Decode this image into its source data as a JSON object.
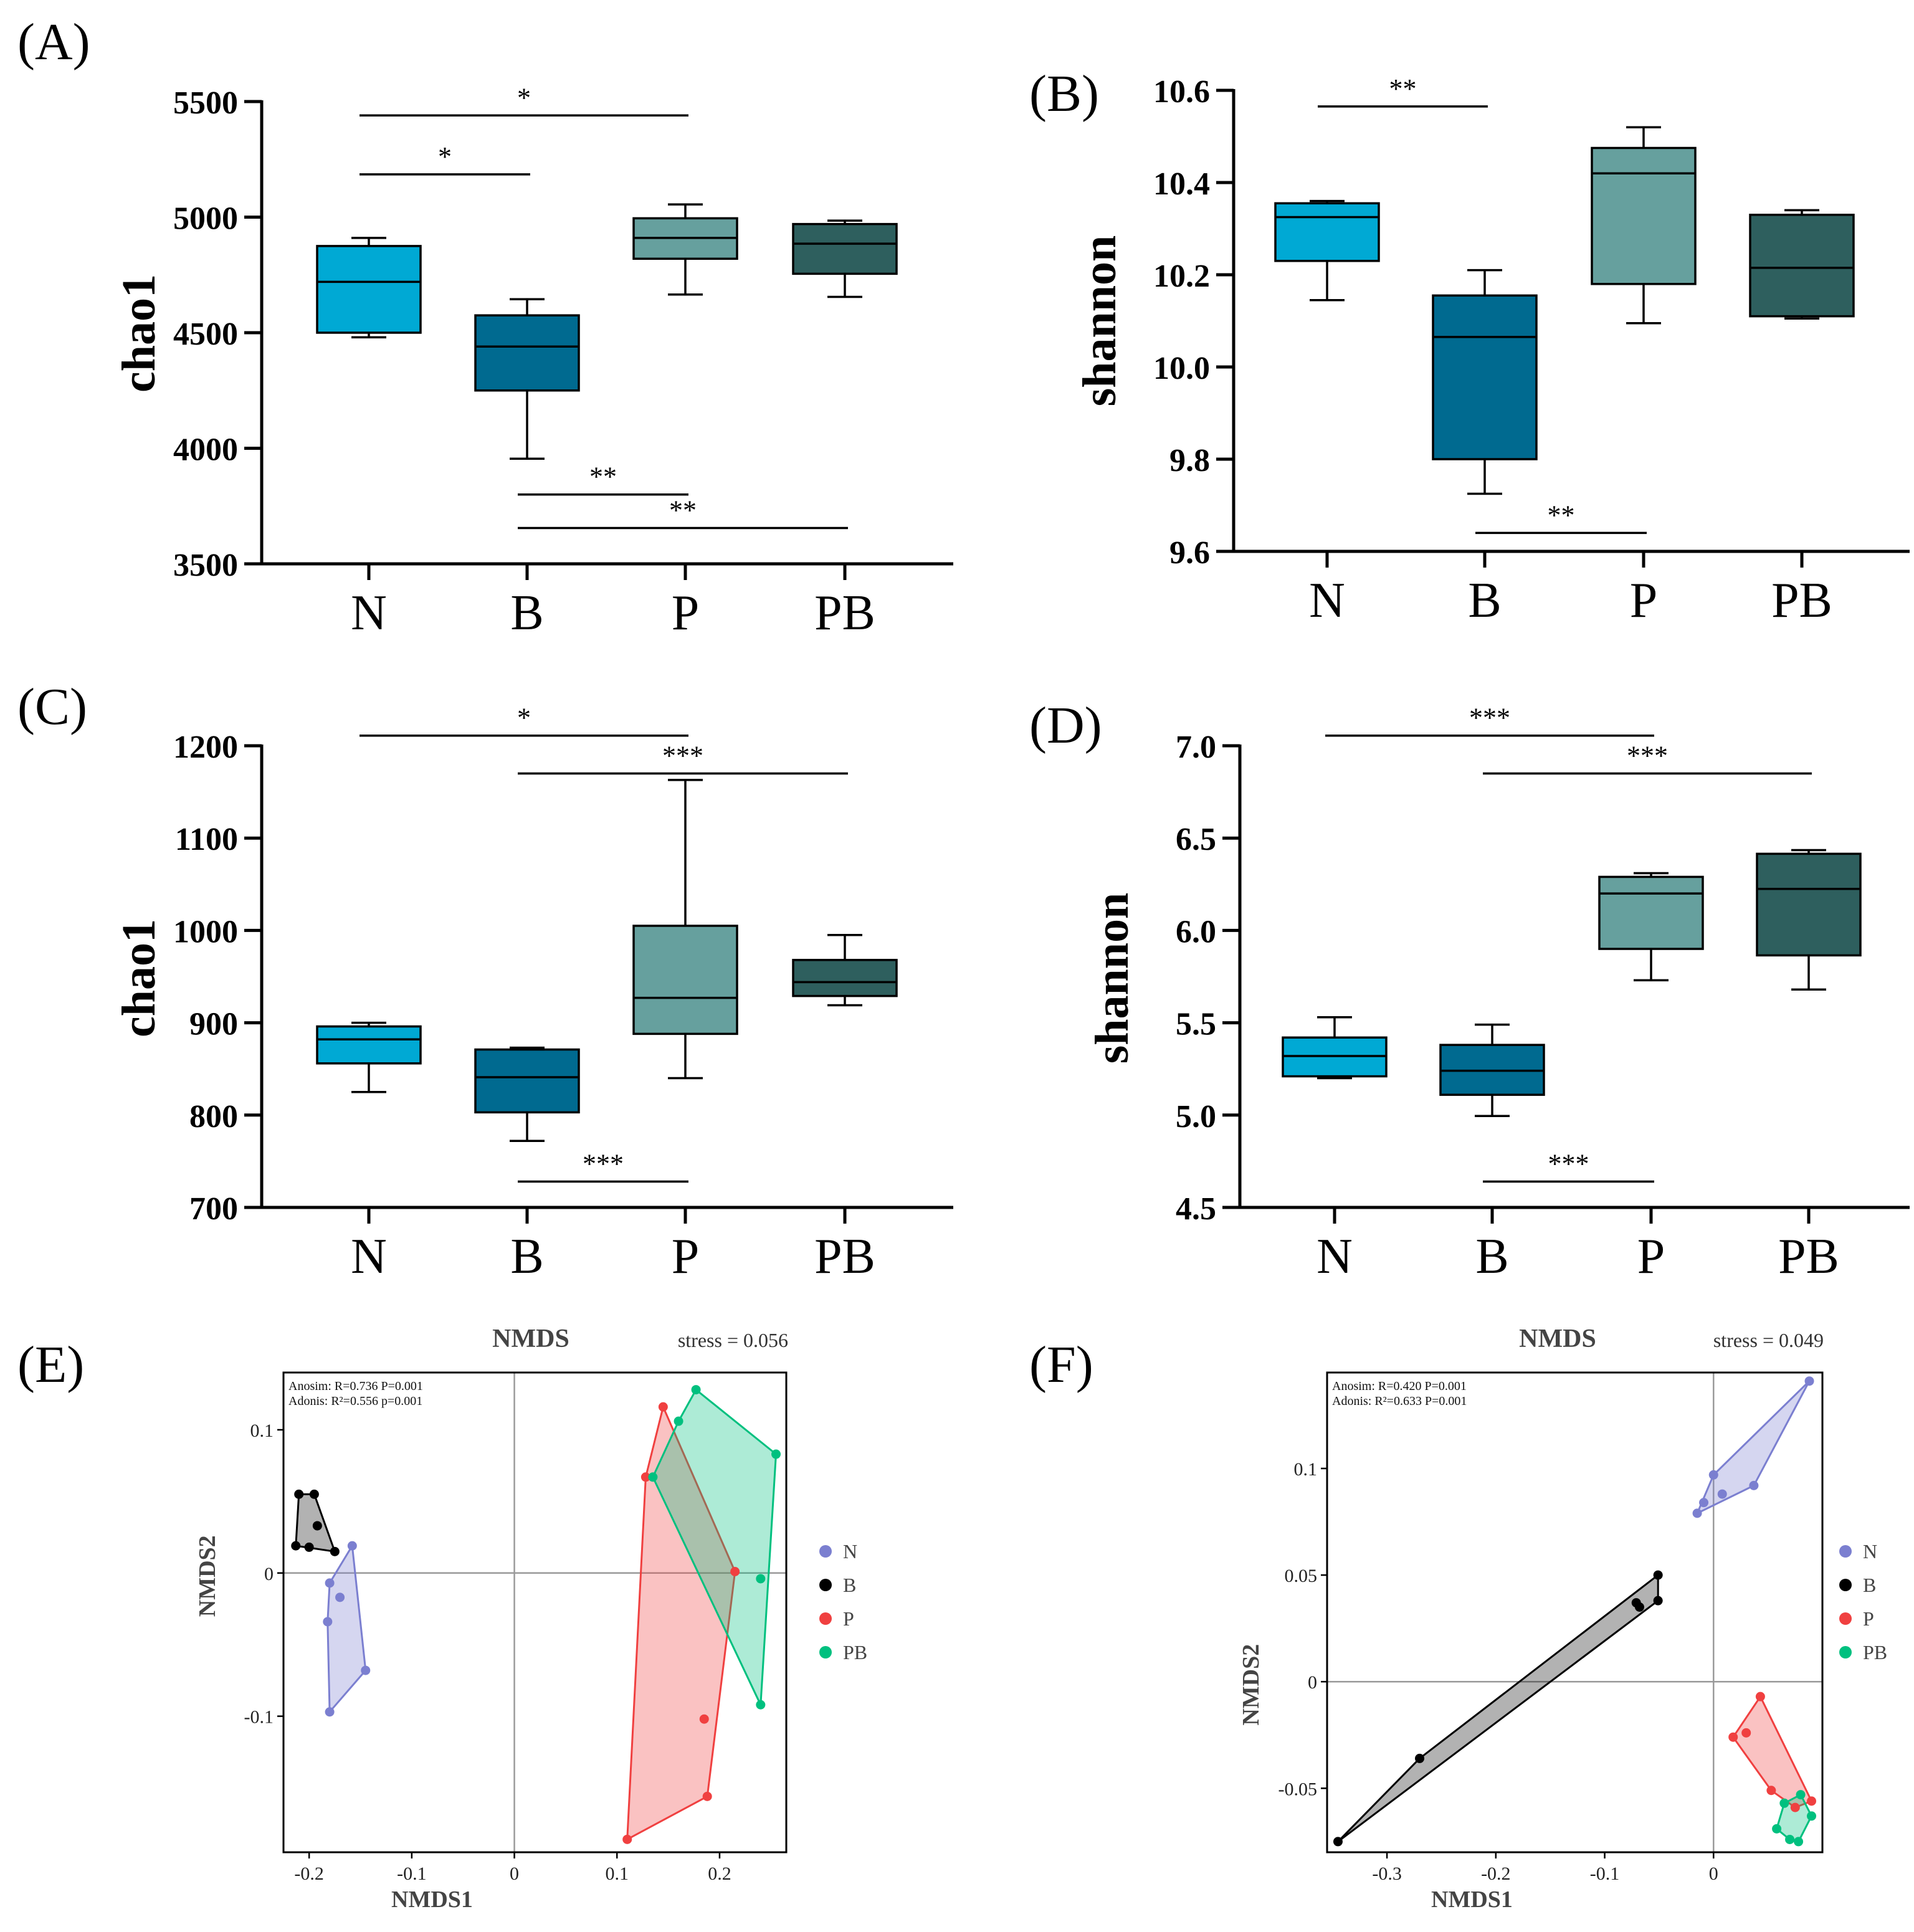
{
  "figure": {
    "colors": {
      "N": "#00A9D4",
      "B": "#006A90",
      "P": "#66A09E",
      "PB": "#2E5F5E"
    },
    "box_plot_categories": [
      "N",
      "B",
      "P",
      "PB"
    ]
  },
  "chart_data": [
    {
      "id": "A",
      "type": "box",
      "panel_label": "(A)",
      "ylabel": "chao1",
      "ylim": [
        3500,
        5500
      ],
      "yticks": [
        3500,
        4000,
        4500,
        5000,
        5500
      ],
      "categories": [
        "N",
        "B",
        "P",
        "PB"
      ],
      "boxes": [
        {
          "group": "N",
          "min": 4480,
          "q1": 4500,
          "median": 4720,
          "q3": 4875,
          "max": 4910
        },
        {
          "group": "B",
          "min": 3955,
          "q1": 4250,
          "median": 4440,
          "q3": 4575,
          "max": 4645
        },
        {
          "group": "P",
          "min": 4665,
          "q1": 4820,
          "median": 4910,
          "q3": 4995,
          "max": 5055
        },
        {
          "group": "PB",
          "min": 4655,
          "q1": 4755,
          "median": 4885,
          "q3": 4970,
          "max": 4985
        }
      ],
      "significance": [
        {
          "from": "N",
          "to": "P",
          "label": "*",
          "y": 5440
        },
        {
          "from": "N",
          "to": "B",
          "label": "*",
          "y": 5185
        },
        {
          "from": "B",
          "to": "P",
          "label": "**",
          "y": 3800
        },
        {
          "from": "B",
          "to": "PB",
          "label": "**",
          "y": 3655
        }
      ]
    },
    {
      "id": "B",
      "type": "box",
      "panel_label": "(B)",
      "ylabel": "shannon",
      "ylim": [
        9.6,
        10.6
      ],
      "yticks": [
        "9.6",
        "9.8",
        "10.0",
        "10.2",
        "10.4",
        "10.6"
      ],
      "categories": [
        "N",
        "B",
        "P",
        "PB"
      ],
      "boxes": [
        {
          "group": "N",
          "min": 10.145,
          "q1": 10.23,
          "median": 10.325,
          "q3": 10.355,
          "max": 10.36
        },
        {
          "group": "B",
          "min": 9.725,
          "q1": 9.8,
          "median": 10.065,
          "q3": 10.155,
          "max": 10.21
        },
        {
          "group": "P",
          "min": 10.095,
          "q1": 10.18,
          "median": 10.42,
          "q3": 10.475,
          "max": 10.52
        },
        {
          "group": "PB",
          "min": 10.105,
          "q1": 10.11,
          "median": 10.215,
          "q3": 10.33,
          "max": 10.34
        }
      ],
      "significance": [
        {
          "from": "N",
          "to": "B",
          "label": "**",
          "y": 10.565
        },
        {
          "from": "B",
          "to": "P",
          "label": "**",
          "y": 9.64
        }
      ]
    },
    {
      "id": "C",
      "type": "box",
      "panel_label": "(C)",
      "ylabel": "chao1",
      "ylim": [
        700,
        1200
      ],
      "yticks": [
        700,
        800,
        900,
        1000,
        1100,
        1200
      ],
      "categories": [
        "N",
        "B",
        "P",
        "PB"
      ],
      "boxes": [
        {
          "group": "N",
          "min": 825,
          "q1": 856,
          "median": 882,
          "q3": 896,
          "max": 900
        },
        {
          "group": "B",
          "min": 772,
          "q1": 803,
          "median": 841,
          "q3": 871,
          "max": 873
        },
        {
          "group": "P",
          "min": 840,
          "q1": 888,
          "median": 927,
          "q3": 1005,
          "max": 1163
        },
        {
          "group": "PB",
          "min": 919,
          "q1": 929,
          "median": 944,
          "q3": 968,
          "max": 995
        }
      ],
      "significance": [
        {
          "from": "N",
          "to": "P",
          "label": "*",
          "y": 1211
        },
        {
          "from": "B",
          "to": "PB",
          "label": "***",
          "y": 1170
        },
        {
          "from": "B",
          "to": "P",
          "label": "***",
          "y": 728
        }
      ]
    },
    {
      "id": "D",
      "type": "box",
      "panel_label": "(D)",
      "ylabel": "shannon",
      "ylim": [
        4.5,
        7.0
      ],
      "yticks": [
        "4.5",
        "5.0",
        "5.5",
        "6.0",
        "6.5",
        "7.0"
      ],
      "categories": [
        "N",
        "B",
        "P",
        "PB"
      ],
      "boxes": [
        {
          "group": "N",
          "min": 5.2,
          "q1": 5.21,
          "median": 5.32,
          "q3": 5.42,
          "max": 5.53
        },
        {
          "group": "B",
          "min": 4.995,
          "q1": 5.11,
          "median": 5.24,
          "q3": 5.38,
          "max": 5.49
        },
        {
          "group": "P",
          "min": 5.73,
          "q1": 5.9,
          "median": 6.2,
          "q3": 6.29,
          "max": 6.31
        },
        {
          "group": "PB",
          "min": 5.68,
          "q1": 5.865,
          "median": 6.225,
          "q3": 6.415,
          "max": 6.435
        }
      ],
      "significance": [
        {
          "from": "N",
          "to": "P",
          "label": "***",
          "y": 7.055
        },
        {
          "from": "B",
          "to": "PB",
          "label": "***",
          "y": 6.85
        },
        {
          "from": "B",
          "to": "P",
          "label": "***",
          "y": 4.64
        }
      ]
    },
    {
      "id": "E",
      "type": "scatter",
      "panel_label": "(E)",
      "title": "NMDS",
      "stress": "stress = 0.056",
      "xlabel": "NMDS1",
      "ylabel": "NMDS2",
      "xlim": [
        -0.225,
        0.265
      ],
      "ylim": [
        -0.195,
        0.14
      ],
      "xticks": [
        "-0.2",
        "-0.1",
        "0",
        "0.1",
        "0.2"
      ],
      "yticks": [
        "0.1",
        "0",
        "-0.1"
      ],
      "annotations": [
        "Anosim: R=0.736 P=0.001",
        "Adonis: R²=0.556 p=0.001"
      ],
      "legend": [
        "N",
        "B",
        "P",
        "PB"
      ],
      "series": [
        {
          "name": "N",
          "color": "#7B7FD0",
          "points": [
            [
              -0.158,
              0.019
            ],
            [
              -0.18,
              -0.007
            ],
            [
              -0.17,
              -0.017
            ],
            [
              -0.182,
              -0.034
            ],
            [
              -0.145,
              -0.068
            ],
            [
              -0.18,
              -0.097
            ]
          ]
        },
        {
          "name": "B",
          "color": "#000000",
          "points": [
            [
              -0.21,
              0.055
            ],
            [
              -0.195,
              0.055
            ],
            [
              -0.192,
              0.033
            ],
            [
              -0.213,
              0.019
            ],
            [
              -0.2,
              0.018
            ],
            [
              -0.175,
              0.015
            ]
          ]
        },
        {
          "name": "P",
          "color": "#F04040",
          "points": [
            [
              0.145,
              0.116
            ],
            [
              0.128,
              0.067
            ],
            [
              0.215,
              0.001
            ],
            [
              0.185,
              -0.102
            ],
            [
              0.188,
              -0.156
            ],
            [
              0.11,
              -0.186
            ]
          ]
        },
        {
          "name": "PB",
          "color": "#00C07F",
          "points": [
            [
              0.177,
              0.128
            ],
            [
              0.16,
              0.106
            ],
            [
              0.135,
              0.067
            ],
            [
              0.255,
              0.083
            ],
            [
              0.24,
              -0.004
            ],
            [
              0.24,
              -0.092
            ]
          ]
        }
      ]
    },
    {
      "id": "F",
      "type": "scatter",
      "panel_label": "(F)",
      "title": "NMDS",
      "stress": "stress = 0.049",
      "xlabel": "NMDS1",
      "ylabel": "NMDS2",
      "xlim": [
        -0.355,
        0.1
      ],
      "ylim": [
        -0.08,
        0.145
      ],
      "xticks": [
        "-0.3",
        "-0.2",
        "-0.1",
        "0"
      ],
      "yticks": [
        "0.1",
        "0.05",
        "0",
        "-0.05"
      ],
      "annotations": [
        "Anosim: R=0.420 P=0.001",
        "Adonis: R²=0.633 P=0.001"
      ],
      "legend": [
        "N",
        "B",
        "P",
        "PB"
      ],
      "series": [
        {
          "name": "N",
          "color": "#7B7FD0",
          "points": [
            [
              0.088,
              0.141
            ],
            [
              0.037,
              0.092
            ],
            [
              0.0,
              0.097
            ],
            [
              0.008,
              0.088
            ],
            [
              -0.009,
              0.084
            ],
            [
              -0.015,
              0.079
            ]
          ]
        },
        {
          "name": "B",
          "color": "#000000",
          "points": [
            [
              -0.051,
              0.05
            ],
            [
              -0.051,
              0.038
            ],
            [
              -0.071,
              0.037
            ],
            [
              -0.068,
              0.035
            ],
            [
              -0.27,
              -0.036
            ],
            [
              -0.345,
              -0.075
            ]
          ]
        },
        {
          "name": "P",
          "color": "#F04040",
          "points": [
            [
              0.043,
              -0.007
            ],
            [
              0.03,
              -0.024
            ],
            [
              0.018,
              -0.026
            ],
            [
              0.053,
              -0.051
            ],
            [
              0.075,
              -0.059
            ],
            [
              0.09,
              -0.056
            ]
          ]
        },
        {
          "name": "PB",
          "color": "#00C07F",
          "points": [
            [
              0.08,
              -0.053
            ],
            [
              0.09,
              -0.063
            ],
            [
              0.065,
              -0.057
            ],
            [
              0.058,
              -0.069
            ],
            [
              0.07,
              -0.074
            ],
            [
              0.078,
              -0.075
            ]
          ]
        }
      ]
    }
  ]
}
